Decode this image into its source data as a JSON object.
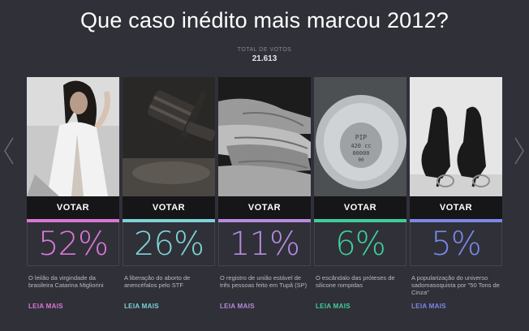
{
  "poll": {
    "question": "Que caso inédito mais marcou 2012?",
    "total_votes_label": "TOTAL DE VOTOS",
    "total_votes": "21.613"
  },
  "nav": {
    "prev_icon": "chevron-left-icon",
    "next_icon": "chevron-right-icon"
  },
  "options": [
    {
      "vote_label": "VOTAR",
      "percent": "52%",
      "percent_value": 52,
      "description": "O leilão da virgindade da brasileira Catarina Migliorini",
      "more_label": "LEIA MAIS",
      "accent": "#d977d6",
      "image": "woman-photo"
    },
    {
      "vote_label": "VOTAR",
      "percent": "26%",
      "percent_value": 26,
      "description": "A liberação do aborto de anencéfalos pelo STF",
      "more_label": "LEIA MAIS",
      "accent": "#7dd3d8",
      "image": "gavel-photo"
    },
    {
      "vote_label": "VOTAR",
      "percent": "11%",
      "percent_value": 11,
      "description": "O registro de união estável de três pessoas feito em Tupã (SP)",
      "more_label": "LEIA MAIS",
      "accent": "#b68be0",
      "image": "stacked-hands-photo"
    },
    {
      "vote_label": "VOTAR",
      "percent": "6%",
      "percent_value": 6,
      "description": "O escândalo das próteses de silicone rompidas",
      "more_label": "LEIA MAIS",
      "accent": "#3ecf9a",
      "image": "silicone-implant-photo",
      "implant_text": [
        "PIP",
        "420 cc",
        "00000",
        "00"
      ]
    },
    {
      "vote_label": "VOTAR",
      "percent": "5%",
      "percent_value": 5,
      "description": "A popularização do universo sadomasoquista por \"50 Tons de Cinza\"",
      "more_label": "LEIA MAIS",
      "accent": "#7a88e8",
      "image": "high-heels-photo"
    }
  ]
}
